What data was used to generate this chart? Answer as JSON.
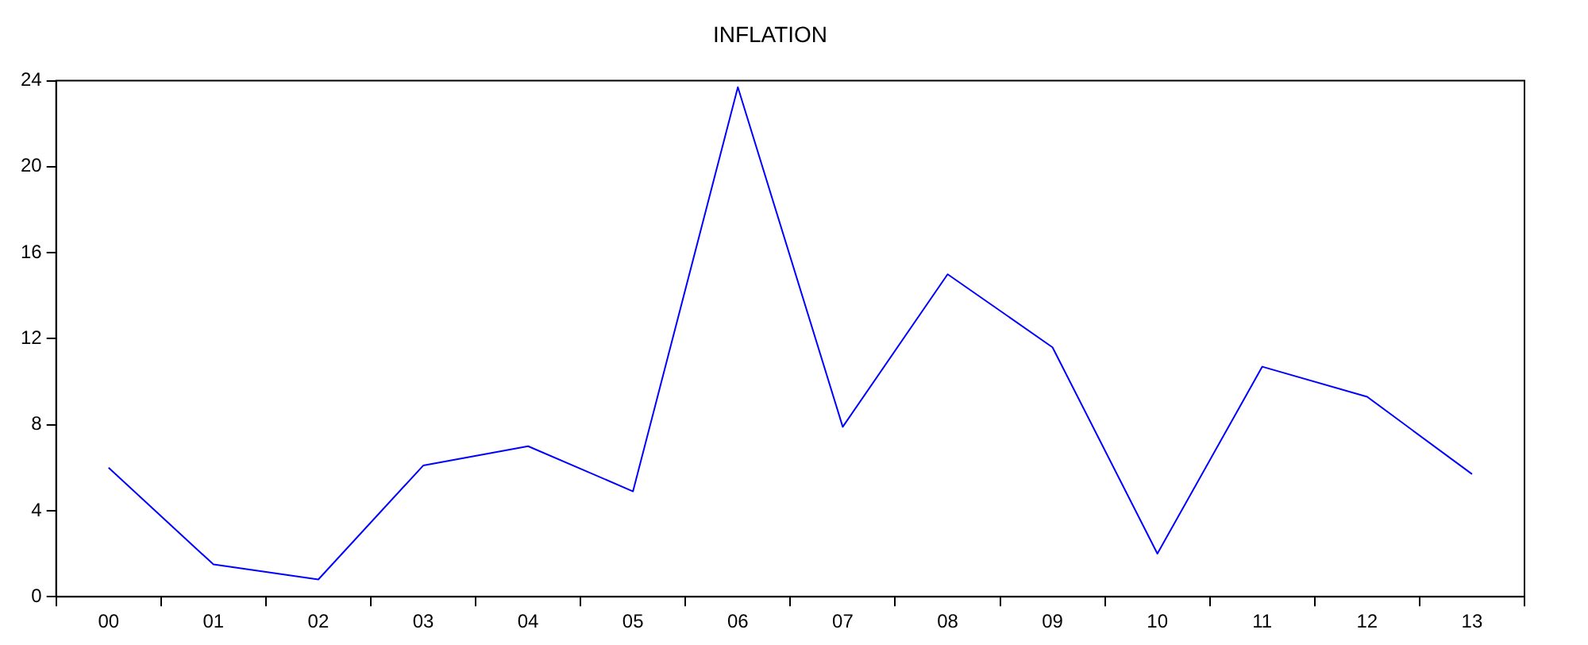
{
  "chart_data": {
    "type": "line",
    "title": "INFLATION",
    "categories": [
      "00",
      "01",
      "02",
      "03",
      "04",
      "05",
      "06",
      "07",
      "08",
      "09",
      "10",
      "11",
      "12",
      "13"
    ],
    "series": [
      {
        "color": "#0000ff",
        "values": [
          6.0,
          1.5,
          0.8,
          6.1,
          7.0,
          4.9,
          23.7,
          7.9,
          15.0,
          11.6,
          2.0,
          10.7,
          9.3,
          5.7
        ]
      }
    ],
    "ylim": [
      0,
      24
    ],
    "yticks": [
      0,
      4,
      8,
      12,
      16,
      20,
      24
    ],
    "grid": false,
    "legend": false,
    "marker": "none",
    "line_style": "solid"
  }
}
